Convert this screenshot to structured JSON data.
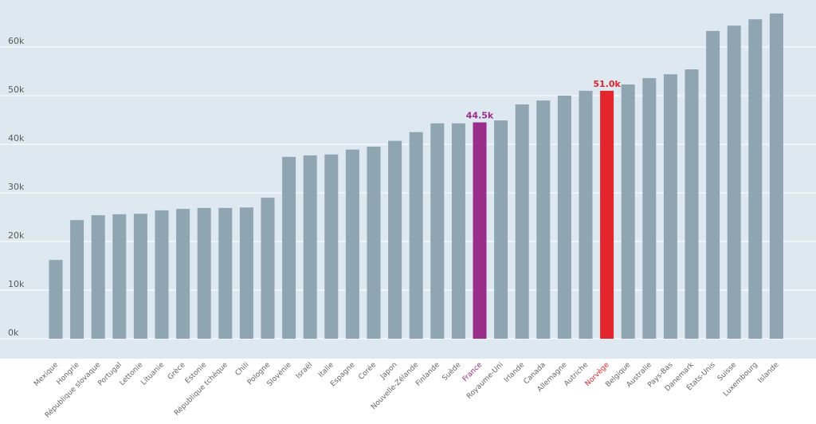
{
  "chart_data": {
    "type": "bar",
    "title": "",
    "xlabel": "",
    "ylabel": "",
    "ylim": [
      0,
      70000
    ],
    "yticks": [
      0,
      10000,
      20000,
      30000,
      40000,
      50000,
      60000
    ],
    "ytick_labels": [
      "0k",
      "10k",
      "20k",
      "30k",
      "40k",
      "50k",
      "60k"
    ],
    "grid": true,
    "categories": [
      "Mexique",
      "Hongrie",
      "République slovaque",
      "Portugal",
      "Lettonie",
      "Lituanie",
      "Grèce",
      "Estonie",
      "République tchèque",
      "Chili",
      "Pologne",
      "Slovénie",
      "Israël",
      "Italie",
      "Espagne",
      "Corée",
      "Japon",
      "Nouvelle-Zélande",
      "Finlande",
      "Suède",
      "France",
      "Royaume-Uni",
      "Irlande",
      "Canada",
      "Allemagne",
      "Autriche",
      "Norvège",
      "Belgique",
      "Australie",
      "Pays-Bas",
      "Danemark",
      "États-Unis",
      "Suisse",
      "Luxembourg",
      "Islande"
    ],
    "values": [
      16200,
      24400,
      25400,
      25600,
      25700,
      26400,
      26700,
      26900,
      26900,
      27000,
      29000,
      37400,
      37700,
      37900,
      38900,
      39500,
      40700,
      42500,
      44300,
      44300,
      44500,
      44900,
      48200,
      49000,
      50000,
      51000,
      51000,
      52300,
      53600,
      54400,
      55400,
      63300,
      64400,
      65700,
      66900
    ],
    "highlights": [
      {
        "category": "France",
        "label": "44.5k",
        "color": "#9b2d8a"
      },
      {
        "category": "Norvège",
        "label": "51.0k",
        "color": "#e3262b"
      }
    ],
    "colors": {
      "bar": "#8fa5b2",
      "background": "#dde8f0",
      "grid": "#ffffff",
      "label": "#666666"
    }
  }
}
